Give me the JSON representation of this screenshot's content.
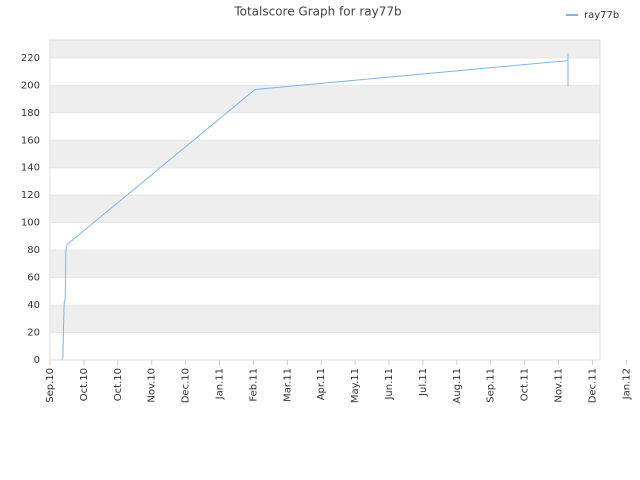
{
  "chart_data": {
    "type": "line",
    "title": "Totalscore Graph for ray77b",
    "series": [
      {
        "name": "ray77b",
        "color": "#7cb5ec",
        "x": [
          0.35,
          0.38,
          0.4,
          0.42,
          0.45,
          0.47,
          0.5,
          6.05,
          15.28,
          15.28,
          15.28
        ],
        "values": [
          0,
          2,
          25,
          42,
          45,
          80,
          84,
          197,
          218,
          223,
          199
        ]
      }
    ],
    "xlim": [
      0,
      16.23
    ],
    "ylim": [
      0,
      233
    ],
    "xticks": [
      {
        "value": 0,
        "label": "Sep.10"
      },
      {
        "value": 1,
        "label": "Oct.10"
      },
      {
        "value": 2,
        "label": "Oct.10"
      },
      {
        "value": 3,
        "label": "Nov.10"
      },
      {
        "value": 4,
        "label": "Dec.10"
      },
      {
        "value": 5,
        "label": "Jan.11"
      },
      {
        "value": 6,
        "label": "Feb.11"
      },
      {
        "value": 7,
        "label": "Mar.11"
      },
      {
        "value": 8,
        "label": "Apr.11"
      },
      {
        "value": 9,
        "label": "May.11"
      },
      {
        "value": 10,
        "label": "Jun.11"
      },
      {
        "value": 11,
        "label": "Jul.11"
      },
      {
        "value": 12,
        "label": "Aug.11"
      },
      {
        "value": 13,
        "label": "Sep.11"
      },
      {
        "value": 14,
        "label": "Oct.11"
      },
      {
        "value": 15,
        "label": "Nov.11"
      },
      {
        "value": 16,
        "label": "Dec.11"
      },
      {
        "value": 17,
        "label": "Jan.12"
      }
    ],
    "yticks": [
      0,
      20,
      40,
      60,
      80,
      100,
      120,
      140,
      160,
      180,
      200,
      220
    ],
    "grid": true,
    "legend": "top-right"
  }
}
